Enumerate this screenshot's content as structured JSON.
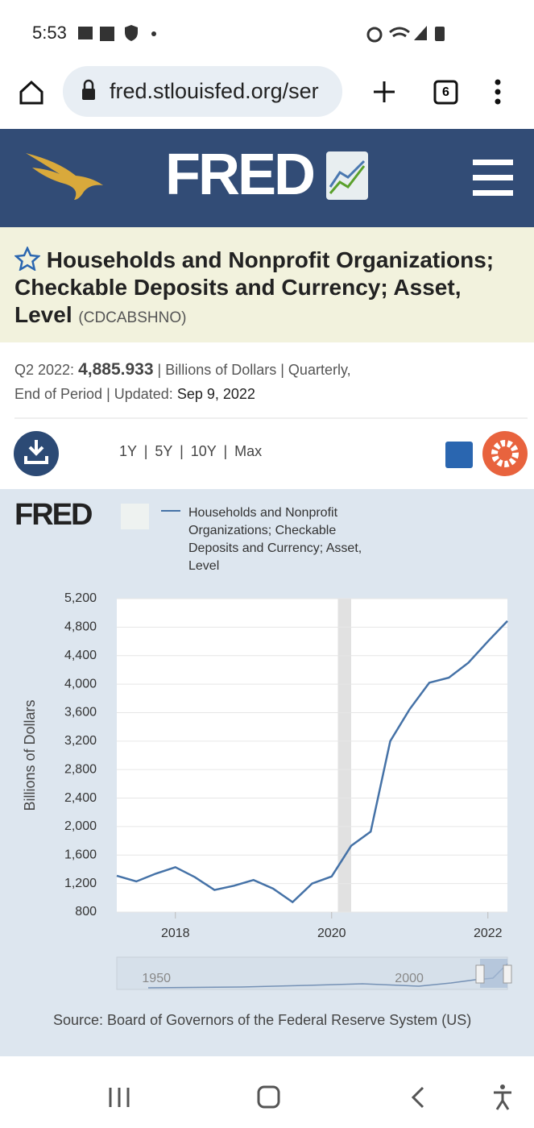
{
  "status_bar": {
    "time": "5:53"
  },
  "browser": {
    "url": "fred.stlouisfed.org/ser",
    "tab_count": "6"
  },
  "header": {
    "logo": "FRED"
  },
  "series_title": {
    "title": "Households and Nonprofit Organizations; Checkable Deposits and Currency; Asset, Level",
    "code": "(CDCABSHNO)"
  },
  "meta": {
    "period": "Q2 2022:",
    "latest": "4,885.933",
    "units": "| Billions of Dollars | Quarterly,",
    "line2": "End of Period | Updated:",
    "updated": "Sep 9, 2022"
  },
  "ranges": [
    "1Y",
    "5Y",
    "10Y",
    "Max"
  ],
  "chart_logo": "FRED",
  "chart_data": {
    "type": "line",
    "y_label": "Billions of Dollars",
    "x": [
      2017.25,
      2017.5,
      2017.75,
      2018,
      2018.25,
      2018.5,
      2018.75,
      2019,
      2019.25,
      2019.5,
      2019.75,
      2020,
      2020.25,
      2020.5,
      2020.75,
      2021,
      2021.25,
      2021.5,
      2021.75,
      2022,
      2022.25
    ],
    "series": [
      {
        "name": "Households and Nonprofit Organizations; Checkable Deposits and Currency; Asset, Level",
        "color": "#4572a7",
        "values": [
          1310,
          1230,
          1340,
          1430,
          1290,
          1110,
          1170,
          1250,
          1130,
          940,
          1200,
          1300,
          1730,
          1930,
          3200,
          3650,
          4020,
          4090,
          4300,
          4600,
          4885.933
        ]
      }
    ],
    "xlim": [
      2017.25,
      2022.25
    ],
    "xticks": [
      2018,
      2020,
      2022
    ],
    "ylim": [
      800,
      5200
    ],
    "yticks": [
      800,
      {
        "value": 1200,
        "label": "1,200"
      },
      {
        "value": 1600,
        "label": "1,600"
      },
      {
        "value": 2000,
        "label": "2,000"
      },
      {
        "value": 2400,
        "label": "2,400"
      },
      {
        "value": 2800,
        "label": "2,800"
      },
      {
        "value": 3200,
        "label": "3,200"
      },
      {
        "value": 3600,
        "label": "3,600"
      },
      {
        "value": 4000,
        "label": "4,000"
      },
      {
        "value": 4400,
        "label": "4,400"
      },
      {
        "value": 4800,
        "label": "4,800"
      },
      {
        "value": 5200,
        "label": "5,200"
      }
    ],
    "grid": true,
    "recession": {
      "start": 2020.08,
      "end": 2020.25,
      "color": "#e1e1e1"
    },
    "navigator": {
      "xlim": [
        1945,
        2022.25
      ],
      "xticks": [
        1950,
        2000
      ]
    },
    "source": "Source: Board of Governors of the Federal Reserve System (US)"
  }
}
